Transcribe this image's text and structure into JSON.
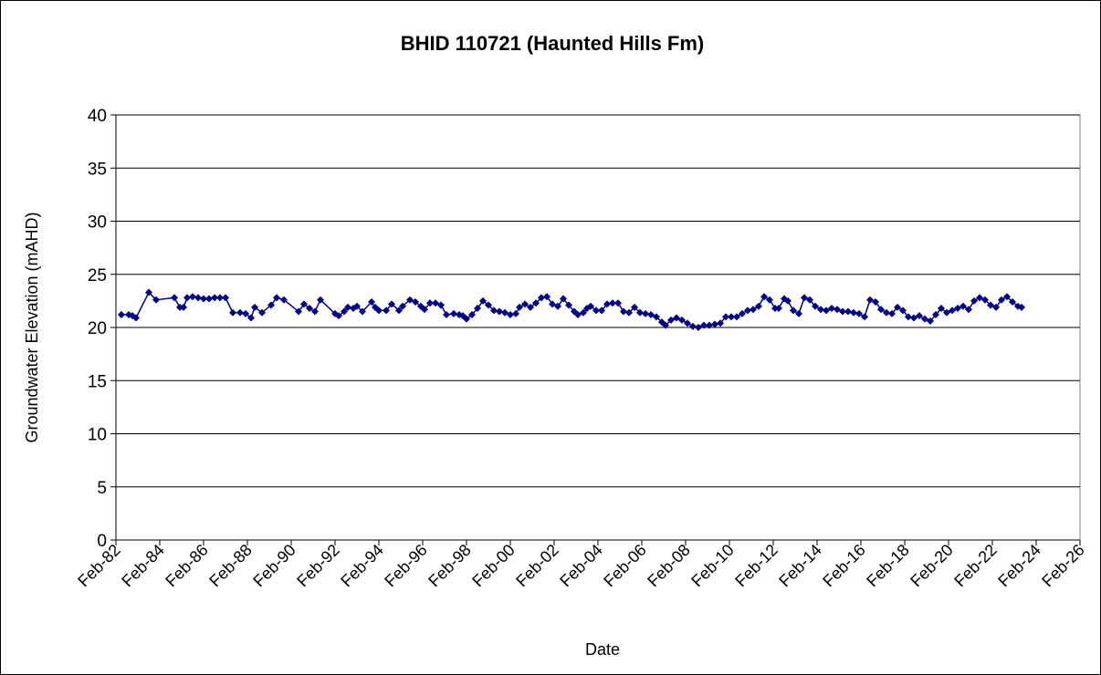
{
  "chart_data": {
    "type": "line",
    "title": "BHID 110721 (Haunted Hills Fm)",
    "x_label": "Date",
    "y_label": "Groundwater Elevation (mAHD)",
    "x": [
      "1982-05",
      "1982-09",
      "1982-11",
      "1983-01",
      "1983-08",
      "1983-12",
      "1984-10",
      "1985-01",
      "1985-03",
      "1985-05",
      "1985-08",
      "1985-11",
      "1986-02",
      "1986-05",
      "1986-08",
      "1986-11",
      "1987-02",
      "1987-06",
      "1987-10",
      "1988-01",
      "1988-04",
      "1988-06",
      "1988-10",
      "1989-03",
      "1989-06",
      "1989-10",
      "1990-06",
      "1990-09",
      "1990-12",
      "1991-03",
      "1991-06",
      "1992-02",
      "1992-04",
      "1992-07",
      "1992-09",
      "1992-12",
      "1993-02",
      "1993-05",
      "1993-10",
      "1993-12",
      "1994-02",
      "1994-06",
      "1994-09",
      "1995-01",
      "1995-03",
      "1995-07",
      "1995-10",
      "1996-01",
      "1996-03",
      "1996-06",
      "1996-09",
      "1996-12",
      "1997-03",
      "1997-07",
      "1997-10",
      "1997-12",
      "1998-02",
      "1998-05",
      "1998-08",
      "1998-11",
      "1999-02",
      "1999-05",
      "1999-08",
      "1999-11",
      "2000-02",
      "2000-05",
      "2000-07",
      "2000-10",
      "2001-01",
      "2001-04",
      "2001-07",
      "2001-10",
      "2002-01",
      "2002-04",
      "2002-07",
      "2002-10",
      "2003-01",
      "2003-03",
      "2003-06",
      "2003-08",
      "2003-10",
      "2004-01",
      "2004-04",
      "2004-07",
      "2004-10",
      "2005-01",
      "2005-04",
      "2005-07",
      "2005-10",
      "2006-01",
      "2006-04",
      "2006-07",
      "2006-10",
      "2007-01",
      "2007-03",
      "2007-06",
      "2007-09",
      "2007-12",
      "2008-03",
      "2008-06",
      "2008-09",
      "2008-12",
      "2009-03",
      "2009-06",
      "2009-09",
      "2009-12",
      "2010-03",
      "2010-06",
      "2010-09",
      "2010-12",
      "2011-03",
      "2011-06",
      "2011-09",
      "2011-12",
      "2012-03",
      "2012-05",
      "2012-08",
      "2012-10",
      "2013-01",
      "2013-04",
      "2013-07",
      "2013-10",
      "2014-01",
      "2014-04",
      "2014-07",
      "2014-10",
      "2015-01",
      "2015-04",
      "2015-07",
      "2015-10",
      "2016-01",
      "2016-04",
      "2016-07",
      "2016-10",
      "2017-01",
      "2017-04",
      "2017-07",
      "2017-10",
      "2018-01",
      "2018-04",
      "2018-07",
      "2018-10",
      "2019-01",
      "2019-04",
      "2019-07",
      "2019-10",
      "2020-01",
      "2020-04",
      "2020-07",
      "2020-10",
      "2021-01",
      "2021-04",
      "2021-07",
      "2021-10",
      "2022-01",
      "2022-04",
      "2022-07",
      "2022-10",
      "2023-01",
      "2023-04",
      "2023-06"
    ],
    "series": [
      {
        "name": "Groundwater Elevation",
        "color": "#000080",
        "values": [
          21.2,
          21.2,
          21.1,
          20.9,
          23.3,
          22.6,
          22.8,
          21.9,
          21.9,
          22.8,
          22.9,
          22.8,
          22.7,
          22.7,
          22.8,
          22.8,
          22.8,
          21.4,
          21.4,
          21.3,
          20.9,
          21.9,
          21.4,
          22.1,
          22.8,
          22.6,
          21.5,
          22.2,
          21.8,
          21.5,
          22.6,
          21.3,
          21.1,
          21.5,
          21.9,
          21.8,
          22.0,
          21.5,
          22.4,
          21.9,
          21.6,
          21.6,
          22.2,
          21.6,
          22.0,
          22.6,
          22.4,
          22.0,
          21.7,
          22.3,
          22.3,
          22.1,
          21.2,
          21.3,
          21.2,
          21.1,
          20.8,
          21.2,
          21.8,
          22.5,
          22.1,
          21.6,
          21.5,
          21.4,
          21.2,
          21.3,
          21.9,
          22.2,
          21.9,
          22.3,
          22.8,
          22.9,
          22.2,
          22.0,
          22.7,
          22.1,
          21.5,
          21.2,
          21.4,
          21.8,
          22.0,
          21.6,
          21.6,
          22.2,
          22.3,
          22.3,
          21.5,
          21.4,
          21.9,
          21.4,
          21.3,
          21.2,
          21.0,
          20.5,
          20.2,
          20.7,
          20.9,
          20.7,
          20.4,
          20.1,
          20.0,
          20.2,
          20.2,
          20.3,
          20.4,
          21.0,
          21.0,
          21.0,
          21.3,
          21.6,
          21.7,
          22.0,
          22.9,
          22.6,
          21.8,
          21.8,
          22.7,
          22.5,
          21.6,
          21.3,
          22.8,
          22.6,
          22.0,
          21.7,
          21.6,
          21.8,
          21.7,
          21.5,
          21.5,
          21.4,
          21.3,
          21.0,
          22.6,
          22.4,
          21.7,
          21.4,
          21.3,
          21.9,
          21.6,
          21.0,
          20.9,
          21.1,
          20.8,
          20.6,
          21.2,
          21.8,
          21.4,
          21.6,
          21.8,
          22.0,
          21.7,
          22.5,
          22.8,
          22.6,
          22.1,
          21.9,
          22.6,
          22.9,
          22.4,
          22.0,
          21.9
        ]
      }
    ],
    "xlim": [
      "1982-02",
      "2026-02"
    ],
    "xticks": [
      {
        "value": "1982-02",
        "label": "Feb-82"
      },
      {
        "value": "1984-02",
        "label": "Feb-84"
      },
      {
        "value": "1986-02",
        "label": "Feb-86"
      },
      {
        "value": "1988-02",
        "label": "Feb-88"
      },
      {
        "value": "1990-02",
        "label": "Feb-90"
      },
      {
        "value": "1992-02",
        "label": "Feb-92"
      },
      {
        "value": "1994-02",
        "label": "Feb-94"
      },
      {
        "value": "1996-02",
        "label": "Feb-96"
      },
      {
        "value": "1998-02",
        "label": "Feb-98"
      },
      {
        "value": "2000-02",
        "label": "Feb-00"
      },
      {
        "value": "2002-02",
        "label": "Feb-02"
      },
      {
        "value": "2004-02",
        "label": "Feb-04"
      },
      {
        "value": "2006-02",
        "label": "Feb-06"
      },
      {
        "value": "2008-02",
        "label": "Feb-08"
      },
      {
        "value": "2010-02",
        "label": "Feb-10"
      },
      {
        "value": "2012-02",
        "label": "Feb-12"
      },
      {
        "value": "2014-02",
        "label": "Feb-14"
      },
      {
        "value": "2016-02",
        "label": "Feb-16"
      },
      {
        "value": "2018-02",
        "label": "Feb-18"
      },
      {
        "value": "2020-02",
        "label": "Feb-20"
      },
      {
        "value": "2022-02",
        "label": "Feb-22"
      },
      {
        "value": "2024-02",
        "label": "Feb-24"
      },
      {
        "value": "2026-02",
        "label": "Feb-26"
      }
    ],
    "ylim": [
      0,
      40
    ],
    "yticks": [
      0,
      5,
      10,
      15,
      20,
      25,
      30,
      35,
      40
    ],
    "grid": true
  }
}
